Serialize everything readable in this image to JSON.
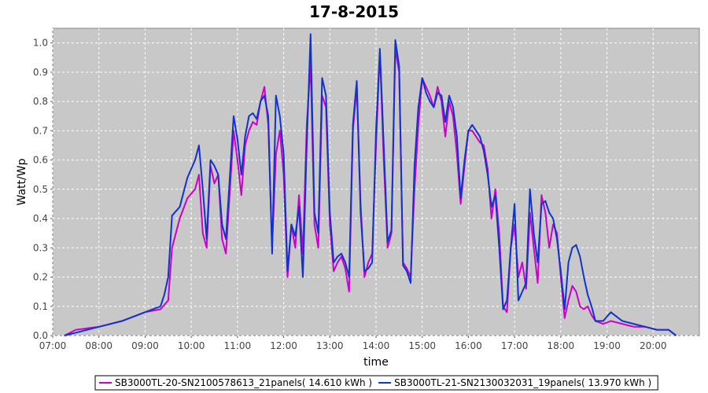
{
  "chart_data": {
    "type": "line",
    "title": "17-8-2015",
    "xlabel": "time",
    "ylabel": "Watt/Wp",
    "xlim": [
      "07:00",
      "21:00"
    ],
    "ylim": [
      0,
      1.05
    ],
    "x_ticks": [
      "07:00",
      "08:00",
      "09:00",
      "10:00",
      "11:00",
      "12:00",
      "13:00",
      "14:00",
      "15:00",
      "16:00",
      "17:00",
      "18:00",
      "19:00",
      "20:00"
    ],
    "y_ticks": [
      "0.0",
      "0.1",
      "0.2",
      "0.3",
      "0.4",
      "0.5",
      "0.6",
      "0.7",
      "0.8",
      "0.9",
      "1.0"
    ],
    "grid": true,
    "legend_position": "bottom",
    "series": [
      {
        "name": "SB3000TL-20-SN2100578613_21panels( 14.610 kWh )",
        "color": "#cc00cc",
        "points": [
          [
            "07:15",
            0.0
          ],
          [
            "07:30",
            0.02
          ],
          [
            "08:00",
            0.03
          ],
          [
            "08:30",
            0.05
          ],
          [
            "09:00",
            0.08
          ],
          [
            "09:20",
            0.09
          ],
          [
            "09:30",
            0.12
          ],
          [
            "09:35",
            0.3
          ],
          [
            "09:45",
            0.4
          ],
          [
            "09:55",
            0.47
          ],
          [
            "10:05",
            0.5
          ],
          [
            "10:10",
            0.55
          ],
          [
            "10:15",
            0.35
          ],
          [
            "10:20",
            0.3
          ],
          [
            "10:25",
            0.58
          ],
          [
            "10:30",
            0.52
          ],
          [
            "10:35",
            0.55
          ],
          [
            "10:40",
            0.33
          ],
          [
            "10:45",
            0.28
          ],
          [
            "10:55",
            0.7
          ],
          [
            "11:00",
            0.6
          ],
          [
            "11:05",
            0.48
          ],
          [
            "11:10",
            0.65
          ],
          [
            "11:15",
            0.7
          ],
          [
            "11:20",
            0.73
          ],
          [
            "11:25",
            0.72
          ],
          [
            "11:30",
            0.8
          ],
          [
            "11:35",
            0.85
          ],
          [
            "11:40",
            0.72
          ],
          [
            "11:45",
            0.3
          ],
          [
            "11:50",
            0.62
          ],
          [
            "11:55",
            0.7
          ],
          [
            "12:00",
            0.55
          ],
          [
            "12:05",
            0.2
          ],
          [
            "12:10",
            0.38
          ],
          [
            "12:15",
            0.3
          ],
          [
            "12:20",
            0.48
          ],
          [
            "12:25",
            0.28
          ],
          [
            "12:30",
            0.72
          ],
          [
            "12:35",
            0.93
          ],
          [
            "12:40",
            0.38
          ],
          [
            "12:45",
            0.3
          ],
          [
            "12:50",
            0.82
          ],
          [
            "12:55",
            0.78
          ],
          [
            "13:00",
            0.38
          ],
          [
            "13:05",
            0.22
          ],
          [
            "13:10",
            0.25
          ],
          [
            "13:15",
            0.27
          ],
          [
            "13:20",
            0.23
          ],
          [
            "13:25",
            0.15
          ],
          [
            "13:30",
            0.7
          ],
          [
            "13:35",
            0.85
          ],
          [
            "13:40",
            0.45
          ],
          [
            "13:45",
            0.2
          ],
          [
            "13:50",
            0.25
          ],
          [
            "13:55",
            0.28
          ],
          [
            "14:00",
            0.65
          ],
          [
            "14:05",
            0.97
          ],
          [
            "14:10",
            0.6
          ],
          [
            "14:15",
            0.3
          ],
          [
            "14:20",
            0.35
          ],
          [
            "14:25",
            0.98
          ],
          [
            "14:30",
            0.9
          ],
          [
            "14:35",
            0.25
          ],
          [
            "14:40",
            0.23
          ],
          [
            "14:45",
            0.2
          ],
          [
            "14:50",
            0.5
          ],
          [
            "14:55",
            0.72
          ],
          [
            "15:00",
            0.88
          ],
          [
            "15:05",
            0.85
          ],
          [
            "15:10",
            0.82
          ],
          [
            "15:15",
            0.78
          ],
          [
            "15:20",
            0.85
          ],
          [
            "15:25",
            0.8
          ],
          [
            "15:30",
            0.68
          ],
          [
            "15:35",
            0.8
          ],
          [
            "15:40",
            0.75
          ],
          [
            "15:45",
            0.62
          ],
          [
            "15:50",
            0.45
          ],
          [
            "15:55",
            0.58
          ],
          [
            "16:00",
            0.7
          ],
          [
            "16:05",
            0.7
          ],
          [
            "16:10",
            0.68
          ],
          [
            "16:15",
            0.66
          ],
          [
            "16:20",
            0.65
          ],
          [
            "16:25",
            0.57
          ],
          [
            "16:30",
            0.4
          ],
          [
            "16:35",
            0.5
          ],
          [
            "16:40",
            0.35
          ],
          [
            "16:45",
            0.1
          ],
          [
            "16:50",
            0.08
          ],
          [
            "16:55",
            0.3
          ],
          [
            "17:00",
            0.38
          ],
          [
            "17:05",
            0.2
          ],
          [
            "17:10",
            0.25
          ],
          [
            "17:15",
            0.16
          ],
          [
            "17:20",
            0.42
          ],
          [
            "17:25",
            0.3
          ],
          [
            "17:30",
            0.18
          ],
          [
            "17:35",
            0.48
          ],
          [
            "17:40",
            0.42
          ],
          [
            "17:45",
            0.3
          ],
          [
            "17:50",
            0.38
          ],
          [
            "17:55",
            0.35
          ],
          [
            "18:00",
            0.2
          ],
          [
            "18:05",
            0.06
          ],
          [
            "18:10",
            0.12
          ],
          [
            "18:15",
            0.17
          ],
          [
            "18:20",
            0.15
          ],
          [
            "18:25",
            0.1
          ],
          [
            "18:30",
            0.09
          ],
          [
            "18:35",
            0.1
          ],
          [
            "18:40",
            0.07
          ],
          [
            "18:45",
            0.05
          ],
          [
            "18:55",
            0.04
          ],
          [
            "19:05",
            0.05
          ],
          [
            "19:20",
            0.04
          ],
          [
            "19:35",
            0.03
          ],
          [
            "19:50",
            0.03
          ],
          [
            "20:05",
            0.02
          ],
          [
            "20:20",
            0.02
          ],
          [
            "20:30",
            0.0
          ]
        ]
      },
      {
        "name": "SB3000TL-21-SN2130032031_19panels( 13.970 kWh )",
        "color": "#1133cc",
        "points": [
          [
            "07:15",
            0.0
          ],
          [
            "07:30",
            0.01
          ],
          [
            "08:00",
            0.03
          ],
          [
            "08:30",
            0.05
          ],
          [
            "09:00",
            0.08
          ],
          [
            "09:20",
            0.1
          ],
          [
            "09:25",
            0.14
          ],
          [
            "09:30",
            0.2
          ],
          [
            "09:35",
            0.41
          ],
          [
            "09:45",
            0.44
          ],
          [
            "09:55",
            0.54
          ],
          [
            "10:05",
            0.6
          ],
          [
            "10:10",
            0.65
          ],
          [
            "10:15",
            0.5
          ],
          [
            "10:20",
            0.33
          ],
          [
            "10:25",
            0.6
          ],
          [
            "10:30",
            0.58
          ],
          [
            "10:35",
            0.55
          ],
          [
            "10:40",
            0.38
          ],
          [
            "10:45",
            0.33
          ],
          [
            "10:55",
            0.75
          ],
          [
            "11:00",
            0.67
          ],
          [
            "11:05",
            0.55
          ],
          [
            "11:10",
            0.68
          ],
          [
            "11:15",
            0.75
          ],
          [
            "11:20",
            0.76
          ],
          [
            "11:25",
            0.74
          ],
          [
            "11:30",
            0.8
          ],
          [
            "11:35",
            0.82
          ],
          [
            "11:40",
            0.75
          ],
          [
            "11:45",
            0.28
          ],
          [
            "11:50",
            0.82
          ],
          [
            "11:55",
            0.75
          ],
          [
            "12:00",
            0.62
          ],
          [
            "12:05",
            0.22
          ],
          [
            "12:10",
            0.38
          ],
          [
            "12:15",
            0.34
          ],
          [
            "12:20",
            0.44
          ],
          [
            "12:25",
            0.2
          ],
          [
            "12:30",
            0.65
          ],
          [
            "12:35",
            1.03
          ],
          [
            "12:40",
            0.42
          ],
          [
            "12:45",
            0.35
          ],
          [
            "12:50",
            0.88
          ],
          [
            "12:55",
            0.82
          ],
          [
            "13:00",
            0.42
          ],
          [
            "13:05",
            0.25
          ],
          [
            "13:10",
            0.27
          ],
          [
            "13:15",
            0.28
          ],
          [
            "13:20",
            0.25
          ],
          [
            "13:25",
            0.2
          ],
          [
            "13:30",
            0.72
          ],
          [
            "13:35",
            0.87
          ],
          [
            "13:40",
            0.42
          ],
          [
            "13:45",
            0.22
          ],
          [
            "13:50",
            0.23
          ],
          [
            "13:55",
            0.25
          ],
          [
            "14:00",
            0.7
          ],
          [
            "14:05",
            0.98
          ],
          [
            "14:10",
            0.65
          ],
          [
            "14:15",
            0.32
          ],
          [
            "14:20",
            0.36
          ],
          [
            "14:25",
            1.01
          ],
          [
            "14:30",
            0.92
          ],
          [
            "14:35",
            0.24
          ],
          [
            "14:40",
            0.22
          ],
          [
            "14:45",
            0.18
          ],
          [
            "14:50",
            0.58
          ],
          [
            "14:55",
            0.78
          ],
          [
            "15:00",
            0.88
          ],
          [
            "15:05",
            0.83
          ],
          [
            "15:10",
            0.8
          ],
          [
            "15:15",
            0.78
          ],
          [
            "15:20",
            0.83
          ],
          [
            "15:25",
            0.82
          ],
          [
            "15:30",
            0.73
          ],
          [
            "15:35",
            0.82
          ],
          [
            "15:40",
            0.78
          ],
          [
            "15:45",
            0.68
          ],
          [
            "15:50",
            0.47
          ],
          [
            "15:55",
            0.6
          ],
          [
            "16:00",
            0.7
          ],
          [
            "16:05",
            0.72
          ],
          [
            "16:10",
            0.7
          ],
          [
            "16:15",
            0.68
          ],
          [
            "16:20",
            0.63
          ],
          [
            "16:25",
            0.55
          ],
          [
            "16:30",
            0.44
          ],
          [
            "16:35",
            0.48
          ],
          [
            "16:40",
            0.3
          ],
          [
            "16:45",
            0.09
          ],
          [
            "16:50",
            0.12
          ],
          [
            "16:55",
            0.3
          ],
          [
            "17:00",
            0.45
          ],
          [
            "17:05",
            0.12
          ],
          [
            "17:10",
            0.15
          ],
          [
            "17:15",
            0.18
          ],
          [
            "17:20",
            0.5
          ],
          [
            "17:25",
            0.35
          ],
          [
            "17:30",
            0.25
          ],
          [
            "17:35",
            0.45
          ],
          [
            "17:40",
            0.46
          ],
          [
            "17:45",
            0.42
          ],
          [
            "17:50",
            0.4
          ],
          [
            "17:55",
            0.33
          ],
          [
            "18:00",
            0.22
          ],
          [
            "18:05",
            0.09
          ],
          [
            "18:10",
            0.25
          ],
          [
            "18:15",
            0.3
          ],
          [
            "18:20",
            0.31
          ],
          [
            "18:25",
            0.27
          ],
          [
            "18:30",
            0.2
          ],
          [
            "18:35",
            0.14
          ],
          [
            "18:40",
            0.1
          ],
          [
            "18:45",
            0.05
          ],
          [
            "18:55",
            0.05
          ],
          [
            "19:05",
            0.08
          ],
          [
            "19:20",
            0.05
          ],
          [
            "19:35",
            0.04
          ],
          [
            "19:50",
            0.03
          ],
          [
            "20:05",
            0.02
          ],
          [
            "20:20",
            0.02
          ],
          [
            "20:30",
            0.0
          ]
        ]
      }
    ]
  }
}
